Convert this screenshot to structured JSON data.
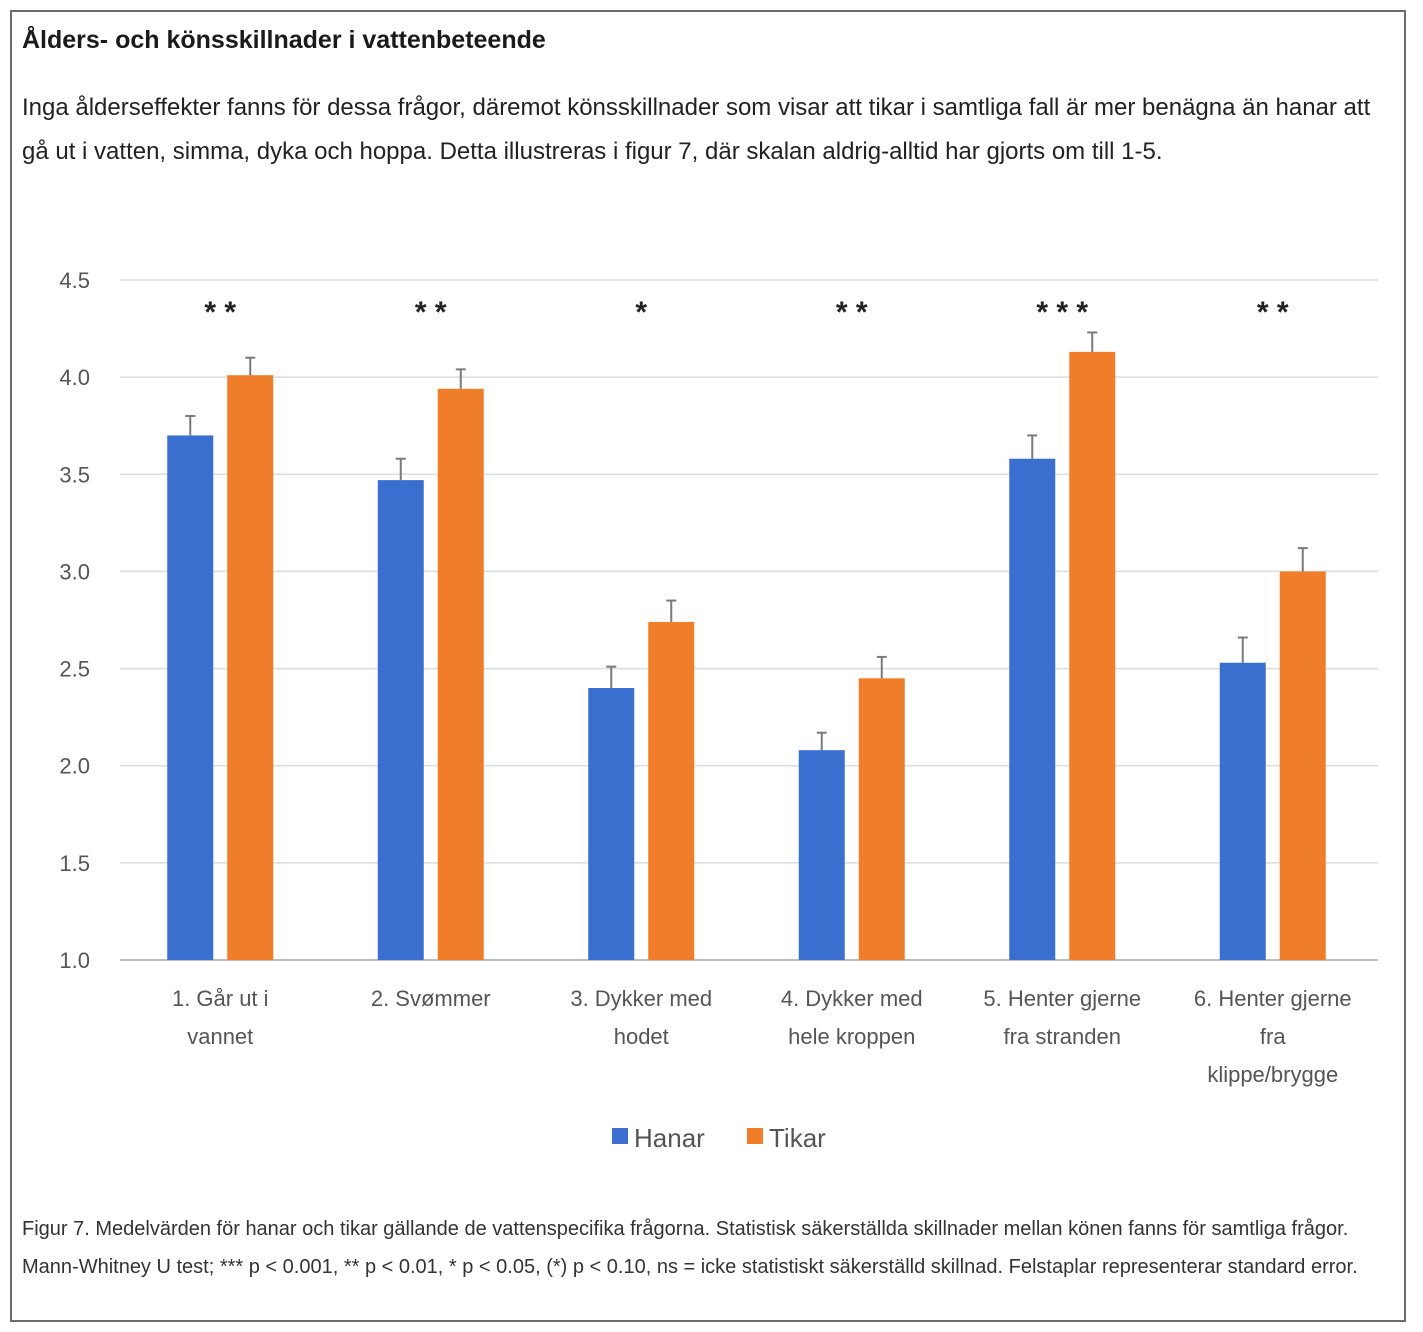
{
  "document": {
    "heading": "Ålders- och könsskillnader i vattenbeteende",
    "intro": "Inga ålderseffekter fanns för dessa frågor, däremot könsskillnader som visar att tikar i samtliga fall är mer benägna än hanar att gå ut i vatten, simma, dyka och hoppa. Detta illustreras i figur 7, där skalan aldrig-alltid har gjorts om till 1-5.",
    "caption": "Figur 7. Medelvärden för hanar och tikar gällande de vattenspecifika frågorna. Statistisk säkerställda skillnader mellan könen fanns för samtliga frågor. Mann-Whitney U test; *** p < 0.001, ** p < 0.01, * p < 0.05, (*) p < 0.10, ns = icke statistiskt säkerställd skillnad. Felstaplar representerar standard error."
  },
  "chart_data": {
    "type": "bar",
    "title": "",
    "xlabel": "",
    "ylabel": "",
    "ylim": [
      1.0,
      4.5
    ],
    "yticks": [
      "1.0",
      "1.5",
      "2.0",
      "2.5",
      "3.0",
      "3.5",
      "4.0",
      "4.5"
    ],
    "grid": true,
    "legend_position": "bottom",
    "categories": [
      [
        "1. Går ut i",
        "vannet"
      ],
      [
        "2. Svømmer"
      ],
      [
        "3. Dykker med",
        "hodet"
      ],
      [
        "4. Dykker med",
        "hele kroppen"
      ],
      [
        "5. Henter gjerne",
        "fra stranden"
      ],
      [
        "6. Henter gjerne",
        "fra",
        "klippe/brygge"
      ]
    ],
    "significance": [
      "* *",
      "* *",
      "*",
      "* *",
      "* * *",
      "* *"
    ],
    "series": [
      {
        "name": "Hanar",
        "color": "#3a6fd0",
        "values": [
          3.7,
          3.47,
          2.4,
          2.08,
          3.58,
          2.53
        ],
        "errors": [
          0.1,
          0.11,
          0.11,
          0.09,
          0.12,
          0.13
        ]
      },
      {
        "name": "Tikar",
        "color": "#ef7d2a",
        "values": [
          4.01,
          3.94,
          2.74,
          2.45,
          4.13,
          3.0
        ],
        "errors": [
          0.09,
          0.1,
          0.11,
          0.11,
          0.1,
          0.12
        ]
      }
    ]
  }
}
